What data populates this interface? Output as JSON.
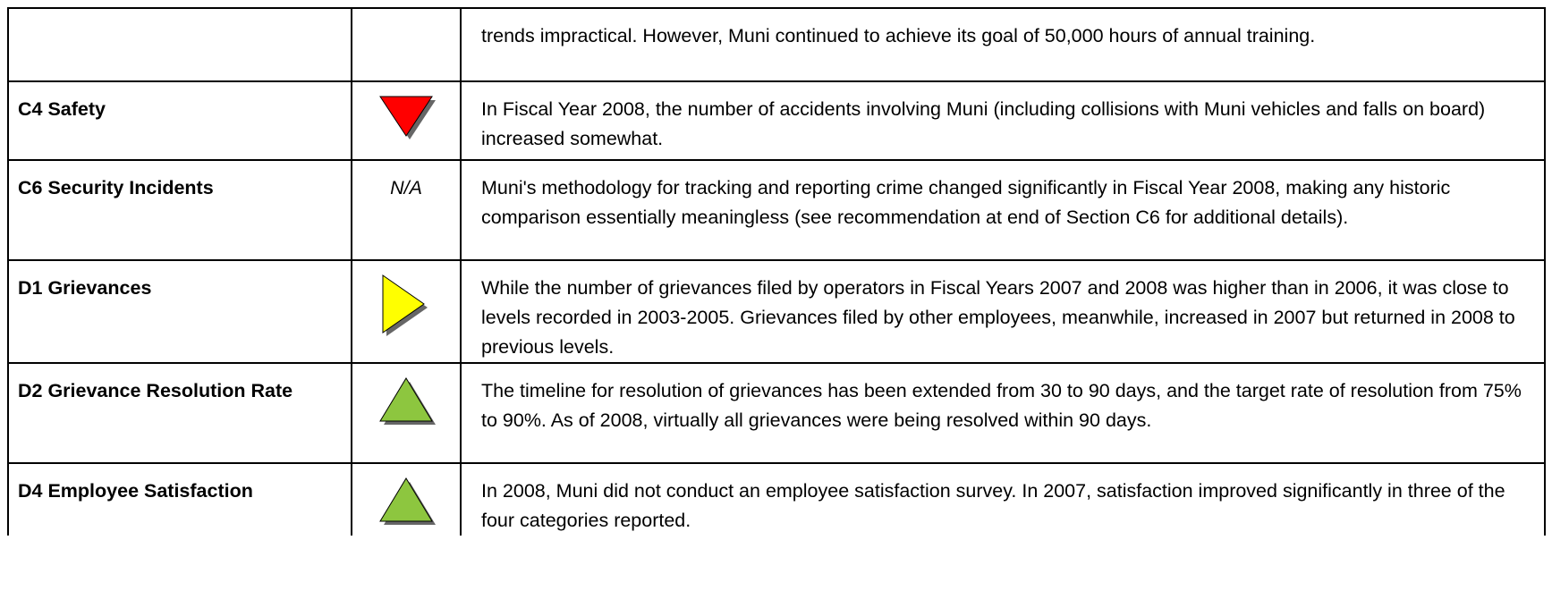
{
  "table": {
    "rows": [
      {
        "description": "trends impractical. However, Muni continued to achieve its goal of 50,000 hours of annual training."
      },
      {
        "measure": "C4 Safety",
        "description": "In Fiscal Year 2008, the number of accidents involving Muni (including collisions with Muni vehicles and falls on board) increased somewhat."
      },
      {
        "measure": "C6 Security Incidents",
        "rating": "N/A",
        "description": "Muni's methodology for tracking and reporting crime changed significantly in Fiscal Year 2008, making any historic comparison essentially meaningless (see recommendation at end of Section C6 for additional details)."
      },
      {
        "measure": "D1 Grievances",
        "description": "While the number of grievances filed by operators in Fiscal Years 2007 and 2008 was higher than in 2006, it was close to levels recorded in 2003-2005. Grievances filed by other employees, meanwhile, increased in 2007 but returned in 2008 to previous levels."
      },
      {
        "measure": "D2 Grievance Resolution Rate",
        "description": "The timeline for resolution of grievances has been extended from 30 to 90 days, and the target rate of resolution from 75% to 90%. As of 2008, virtually all grievances were being resolved within 90 days."
      },
      {
        "measure": "D4 Employee Satisfaction",
        "description": "In 2008, Muni did not conduct an employee satisfaction survey. In 2007, satisfaction improved significantly in three of the four categories reported."
      }
    ]
  }
}
